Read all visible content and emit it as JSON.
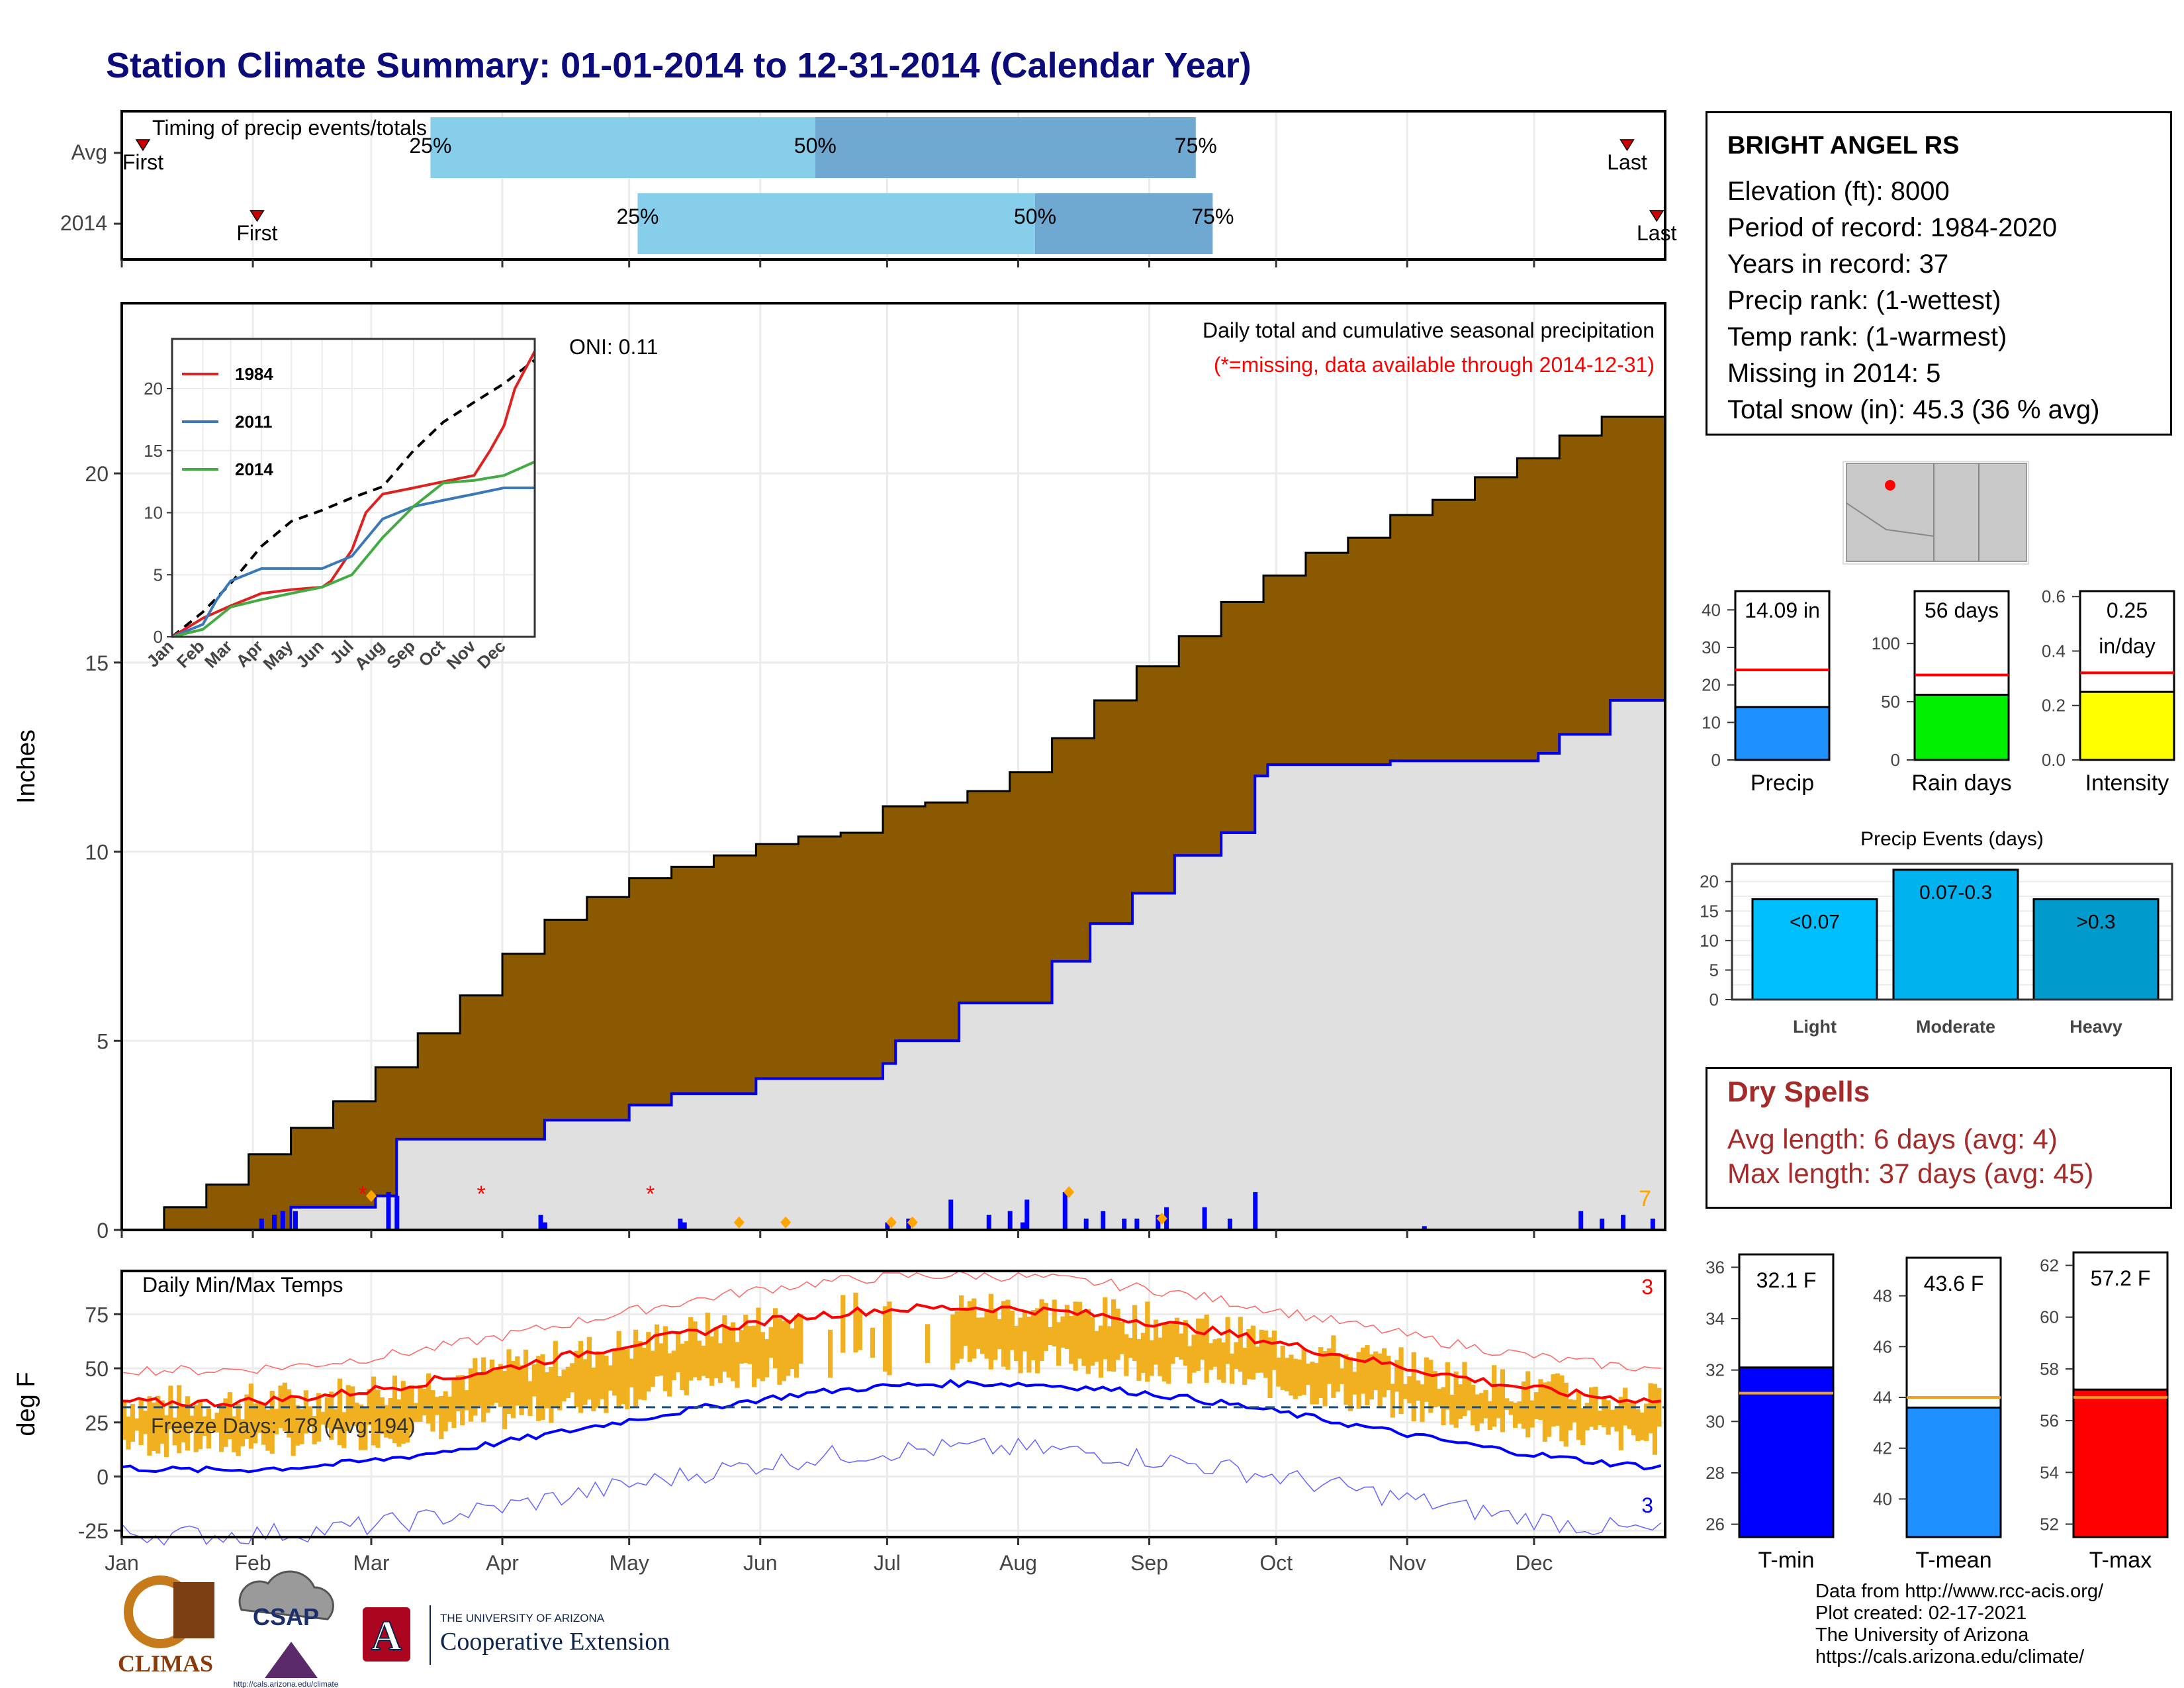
{
  "title": "Station Climate Summary: 01-01-2014 to 12-31-2014 (Calendar Year)",
  "timing": {
    "label": "Timing of precip events/totals",
    "rows": [
      {
        "name": "Avg",
        "first": "First",
        "last": "Last",
        "first_day": 5,
        "last_day": 356,
        "q25": 73,
        "q50": 164,
        "q75": 254
      },
      {
        "name": "2014",
        "first": "First",
        "last": "Last",
        "first_day": 32,
        "last_day": 363,
        "q25": 122,
        "q50": 216,
        "q75": 258
      }
    ],
    "pct_labels": [
      "25%",
      "50%",
      "75%"
    ]
  },
  "precip": {
    "ylabel": "Inches",
    "legend_text": "Daily total and cumulative seasonal precipitation",
    "missing_note": "(*=missing, data available through 2014-12-31)",
    "oni": "ONI: 0.11",
    "corner_count": "7",
    "y_ticks": [
      "0",
      "5",
      "10",
      "15",
      "20"
    ],
    "avg_cum": [
      [
        0,
        0
      ],
      [
        10,
        0.6
      ],
      [
        20,
        1.2
      ],
      [
        30,
        2.0
      ],
      [
        40,
        2.7
      ],
      [
        50,
        3.4
      ],
      [
        60,
        4.3
      ],
      [
        70,
        5.2
      ],
      [
        80,
        6.2
      ],
      [
        90,
        7.3
      ],
      [
        100,
        8.2
      ],
      [
        110,
        8.8
      ],
      [
        120,
        9.3
      ],
      [
        130,
        9.6
      ],
      [
        140,
        9.9
      ],
      [
        150,
        10.2
      ],
      [
        160,
        10.4
      ],
      [
        170,
        10.5
      ],
      [
        180,
        11.2
      ],
      [
        190,
        11.3
      ],
      [
        200,
        11.6
      ],
      [
        210,
        12.1
      ],
      [
        220,
        13.0
      ],
      [
        230,
        14.0
      ],
      [
        240,
        14.9
      ],
      [
        250,
        15.7
      ],
      [
        260,
        16.6
      ],
      [
        270,
        17.3
      ],
      [
        280,
        17.9
      ],
      [
        290,
        18.3
      ],
      [
        300,
        18.9
      ],
      [
        310,
        19.3
      ],
      [
        320,
        19.9
      ],
      [
        330,
        20.4
      ],
      [
        340,
        21.0
      ],
      [
        350,
        21.5
      ],
      [
        365,
        22.3
      ]
    ],
    "obs_cum": [
      [
        0,
        0
      ],
      [
        30,
        0
      ],
      [
        40,
        0.6
      ],
      [
        60,
        0.9
      ],
      [
        65,
        2.4
      ],
      [
        100,
        2.9
      ],
      [
        120,
        3.3
      ],
      [
        130,
        3.6
      ],
      [
        150,
        4.0
      ],
      [
        180,
        4.4
      ],
      [
        183,
        5.0
      ],
      [
        198,
        6.0
      ],
      [
        220,
        7.1
      ],
      [
        229,
        8.1
      ],
      [
        239,
        8.9
      ],
      [
        249,
        9.9
      ],
      [
        260,
        10.5
      ],
      [
        268,
        12.0
      ],
      [
        271,
        12.3
      ],
      [
        300,
        12.4
      ],
      [
        335,
        12.6
      ],
      [
        340,
        13.1
      ],
      [
        352,
        14.0
      ],
      [
        365,
        14.09
      ]
    ],
    "daily_bars": [
      [
        33,
        0.3
      ],
      [
        36,
        0.4
      ],
      [
        38,
        0.5
      ],
      [
        41,
        0.5
      ],
      [
        63,
        1.0
      ],
      [
        65,
        0.9
      ],
      [
        99,
        0.4
      ],
      [
        100,
        0.2
      ],
      [
        132,
        0.3
      ],
      [
        133,
        0.2
      ],
      [
        181,
        0.2
      ],
      [
        186,
        0.3
      ],
      [
        196,
        0.8
      ],
      [
        205,
        0.4
      ],
      [
        210,
        0.5
      ],
      [
        213,
        0.2
      ],
      [
        214,
        0.8
      ],
      [
        223,
        1.0
      ],
      [
        228,
        0.3
      ],
      [
        232,
        0.5
      ],
      [
        237,
        0.3
      ],
      [
        240,
        0.3
      ],
      [
        245,
        0.4
      ],
      [
        247,
        0.6
      ],
      [
        256,
        0.6
      ],
      [
        262,
        0.3
      ],
      [
        268,
        1.0
      ],
      [
        308,
        0.1
      ],
      [
        345,
        0.5
      ],
      [
        350,
        0.3
      ],
      [
        355,
        0.4
      ],
      [
        362,
        0.3
      ]
    ],
    "missing_days": [
      57,
      85,
      125
    ],
    "orange_days": [
      [
        59,
        0.9
      ],
      [
        146,
        0.2
      ],
      [
        157,
        0.2
      ],
      [
        182,
        0.2
      ],
      [
        187,
        0.2
      ],
      [
        224,
        1.0
      ],
      [
        246,
        0.3
      ]
    ],
    "inset": {
      "series": [
        {
          "name": "1984",
          "color": "#dd2222",
          "points": [
            [
              0,
              0
            ],
            [
              31,
              1.5
            ],
            [
              59,
              2.5
            ],
            [
              90,
              3.5
            ],
            [
              120,
              3.8
            ],
            [
              151,
              4.0
            ],
            [
              160,
              4.5
            ],
            [
              181,
              7.0
            ],
            [
              195,
              10.0
            ],
            [
              212,
              11.5
            ],
            [
              243,
              12.0
            ],
            [
              273,
              12.5
            ],
            [
              304,
              13.0
            ],
            [
              320,
              15.0
            ],
            [
              334,
              17.0
            ],
            [
              345,
              20.0
            ],
            [
              365,
              23.0
            ]
          ]
        },
        {
          "name": "2011",
          "color": "#3a78b8",
          "points": [
            [
              0,
              0
            ],
            [
              31,
              1.0
            ],
            [
              45,
              3.0
            ],
            [
              59,
              4.5
            ],
            [
              90,
              5.5
            ],
            [
              120,
              5.5
            ],
            [
              151,
              5.5
            ],
            [
              181,
              6.5
            ],
            [
              212,
              9.5
            ],
            [
              243,
              10.5
            ],
            [
              273,
              11.0
            ],
            [
              304,
              11.5
            ],
            [
              334,
              12.0
            ],
            [
              365,
              12.0
            ]
          ]
        },
        {
          "name": "2014",
          "color": "#44aa44",
          "points": [
            [
              0,
              0
            ],
            [
              31,
              0.6
            ],
            [
              59,
              2.4
            ],
            [
              90,
              3.0
            ],
            [
              120,
              3.5
            ],
            [
              151,
              4.0
            ],
            [
              181,
              5.0
            ],
            [
              212,
              8.0
            ],
            [
              243,
              10.5
            ],
            [
              273,
              12.4
            ],
            [
              304,
              12.6
            ],
            [
              334,
              13.0
            ],
            [
              365,
              14.1
            ]
          ]
        }
      ],
      "avg_points": [
        [
          0,
          0
        ],
        [
          31,
          2.0
        ],
        [
          59,
          4.3
        ],
        [
          90,
          7.3
        ],
        [
          120,
          9.3
        ],
        [
          151,
          10.2
        ],
        [
          181,
          11.2
        ],
        [
          212,
          12.1
        ],
        [
          243,
          15.0
        ],
        [
          273,
          17.3
        ],
        [
          304,
          18.9
        ],
        [
          334,
          20.4
        ],
        [
          365,
          22.3
        ]
      ],
      "y_ticks": [
        "0",
        "5",
        "10",
        "15",
        "20"
      ],
      "months": [
        "Jan",
        "Feb",
        "Mar",
        "Apr",
        "May",
        "Jun",
        "Jul",
        "Aug",
        "Sep",
        "Oct",
        "Nov",
        "Dec"
      ]
    }
  },
  "temps": {
    "ylabel": "deg F",
    "label": "Daily Min/Max Temps",
    "freeze_label": "Freeze Days: 178 (Avg:194)",
    "corner_max": "3",
    "corner_min": "3",
    "y_ticks": [
      "-25",
      "0",
      "25",
      "50",
      "75"
    ],
    "freeze_line": 32
  },
  "months": [
    "Jan",
    "Feb",
    "Mar",
    "Apr",
    "May",
    "Jun",
    "Jul",
    "Aug",
    "Sep",
    "Oct",
    "Nov",
    "Dec"
  ],
  "station": {
    "name": "BRIGHT ANGEL RS",
    "lines": [
      "Elevation (ft): 8000",
      "Period of record: 1984-2020",
      "Years in record: 37",
      "Precip rank:  (1-wettest)",
      "Temp rank:  (1-warmest)",
      "Missing in 2014: 5",
      "Total snow (in): 45.3 (36 % avg)"
    ]
  },
  "summary_bars": [
    {
      "name": "Precip",
      "value_label": "14.09 in",
      "value": 14.09,
      "avg": 24,
      "max": 45,
      "ticks": [
        "0",
        "10",
        "20",
        "30",
        "40"
      ],
      "tick_vals": [
        0,
        10,
        20,
        30,
        40
      ],
      "color": "#1e90ff"
    },
    {
      "name": "Rain days",
      "value_label": "56 days",
      "value": 56,
      "avg": 73,
      "max": 145,
      "ticks": [
        "0",
        "50",
        "100"
      ],
      "tick_vals": [
        0,
        50,
        100
      ],
      "color": "#00ee00"
    },
    {
      "name": "Intensity",
      "value_label": "0.25\nin/day",
      "value": 0.25,
      "avg": 0.32,
      "max": 0.62,
      "ticks": [
        "0.0",
        "0.2",
        "0.4",
        "0.6"
      ],
      "tick_vals": [
        0,
        0.2,
        0.4,
        0.6
      ],
      "color": "#ffff00"
    }
  ],
  "events": {
    "title": "Precip Events (days)",
    "ticks": [
      "0",
      "5",
      "10",
      "15",
      "20"
    ],
    "bars": [
      {
        "name": "Light",
        "label": "<0.07",
        "value": 17,
        "color": "#00bfff"
      },
      {
        "name": "Moderate",
        "label": "0.07-0.3",
        "value": 22,
        "color": "#00b2ee"
      },
      {
        "name": "Heavy",
        "label": ">0.3",
        "value": 17,
        "color": "#009acd"
      }
    ]
  },
  "dry": {
    "title": "Dry Spells",
    "avg_line": "Avg length: 6 days (avg: 4)",
    "max_line": "Max length: 37 days (avg: 45)"
  },
  "temp_bars": [
    {
      "name": "T-min",
      "value_label": "32.1 F",
      "value": 32.1,
      "avg": 31.1,
      "min": 25.5,
      "max": 36.5,
      "ticks": [
        "26",
        "28",
        "30",
        "32",
        "34",
        "36"
      ],
      "tick_vals": [
        26,
        28,
        30,
        32,
        34,
        36
      ],
      "color": "#0000ff"
    },
    {
      "name": "T-mean",
      "value_label": "43.6 F",
      "value": 43.6,
      "avg": 44.0,
      "min": 38.5,
      "max": 49.5,
      "ticks": [
        "40",
        "42",
        "44",
        "46",
        "48"
      ],
      "tick_vals": [
        40,
        42,
        44,
        46,
        48
      ],
      "color": "#1e90ff"
    },
    {
      "name": "T-max",
      "value_label": "57.2 F",
      "value": 57.2,
      "avg": 56.9,
      "min": 51.5,
      "max": 62.5,
      "ticks": [
        "52",
        "54",
        "56",
        "58",
        "60",
        "62"
      ],
      "tick_vals": [
        52,
        54,
        56,
        58,
        60,
        62
      ],
      "color": "#ff0000"
    }
  ],
  "logos": {
    "climas": "CLIMAS",
    "csap": "CSAP",
    "csap_url": "http://cals.arizona.edu/climate",
    "ua_small": "THE UNIVERSITY OF ARIZONA",
    "ua_big": "Cooperative Extension",
    "ua_letter": "A"
  },
  "footer": [
    "Data from http://www.rcc-acis.org/",
    "Plot created: 02-17-2021",
    "The University of Arizona",
    "https://cals.arizona.edu/climate/"
  ],
  "chart_data": [
    {
      "type": "bar",
      "title": "Timing of precip events/totals",
      "categories": [
        "Avg",
        "2014"
      ],
      "series": [
        {
          "name": "25%",
          "values": [
            73,
            122
          ]
        },
        {
          "name": "50%",
          "values": [
            164,
            216
          ]
        },
        {
          "name": "75%",
          "values": [
            254,
            258
          ]
        }
      ]
    },
    {
      "type": "area",
      "title": "Daily total and cumulative seasonal precipitation",
      "ylabel": "Inches",
      "ylim": [
        0,
        24.5
      ],
      "categories": [
        "Jan",
        "Feb",
        "Mar",
        "Apr",
        "May",
        "Jun",
        "Jul",
        "Aug",
        "Sep",
        "Oct",
        "Nov",
        "Dec"
      ]
    },
    {
      "type": "line",
      "title": "Daily Min/Max Temps",
      "ylabel": "deg F",
      "ylim": [
        -28,
        95
      ]
    },
    {
      "type": "bar",
      "categories": [
        "Precip",
        "Rain days",
        "Intensity"
      ],
      "values": [
        14.09,
        56,
        0.25
      ]
    },
    {
      "type": "bar",
      "title": "Precip Events (days)",
      "categories": [
        "Light",
        "Moderate",
        "Heavy"
      ],
      "values": [
        17,
        22,
        17
      ]
    },
    {
      "type": "bar",
      "categories": [
        "T-min",
        "T-mean",
        "T-max"
      ],
      "values": [
        32.1,
        43.6,
        57.2
      ]
    }
  ]
}
